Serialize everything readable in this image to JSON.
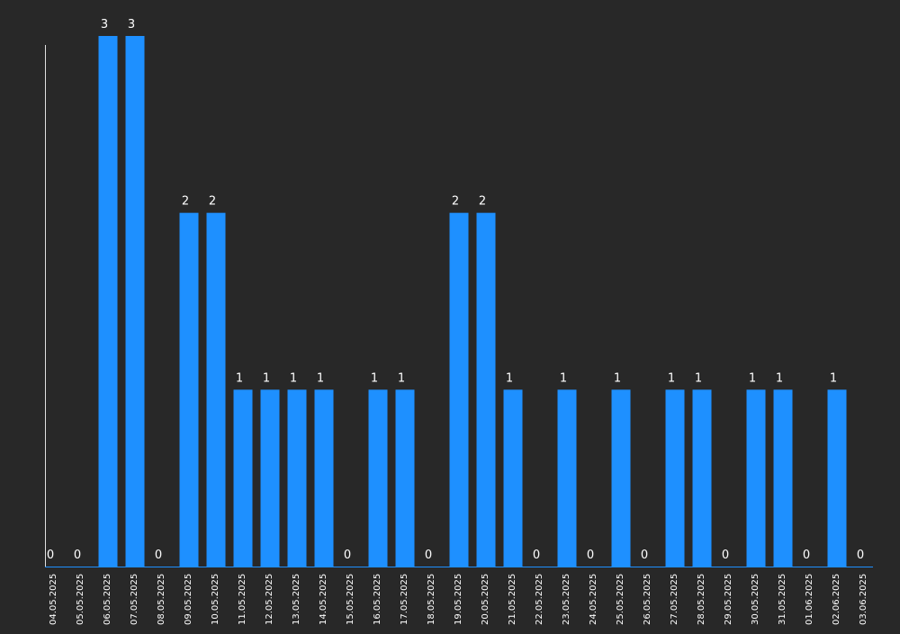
{
  "chart_data": {
    "type": "bar",
    "title": "",
    "xlabel": "",
    "ylabel": "",
    "ylim": [
      0,
      3
    ],
    "grid": false,
    "legend": "none",
    "categories": [
      "04.05.2025",
      "05.05.2025",
      "06.05.2025",
      "07.05.2025",
      "08.05.2025",
      "09.05.2025",
      "10.05.2025",
      "11.05.2025",
      "12.05.2025",
      "13.05.2025",
      "14.05.2025",
      "15.05.2025",
      "16.05.2025",
      "17.05.2025",
      "18.05.2025",
      "19.05.2025",
      "20.05.2025",
      "21.05.2025",
      "22.05.2025",
      "23.05.2025",
      "24.05.2025",
      "25.05.2025",
      "26.05.2025",
      "27.05.2025",
      "28.05.2025",
      "29.05.2025",
      "30.05.2025",
      "31.05.2025",
      "01.06.2025",
      "02.06.2025",
      "03.06.2025"
    ],
    "values": [
      0,
      0,
      3,
      3,
      0,
      2,
      2,
      1,
      1,
      1,
      1,
      0,
      1,
      1,
      0,
      2,
      2,
      1,
      0,
      1,
      0,
      1,
      0,
      1,
      1,
      0,
      1,
      1,
      0,
      1,
      0
    ],
    "data_labels": [
      "0",
      "0",
      "3",
      "3",
      "0",
      "2",
      "2",
      "1",
      "1",
      "1",
      "1",
      "0",
      "1",
      "1",
      "0",
      "2",
      "2",
      "1",
      "0",
      "1",
      "0",
      "1",
      "0",
      "1",
      "1",
      "0",
      "1",
      "1",
      "0",
      "1",
      "0"
    ],
    "colors": {
      "background": "#282828",
      "bar": "#1e90ff",
      "axis": "#e0e0e0",
      "text": "#ffffff"
    }
  }
}
